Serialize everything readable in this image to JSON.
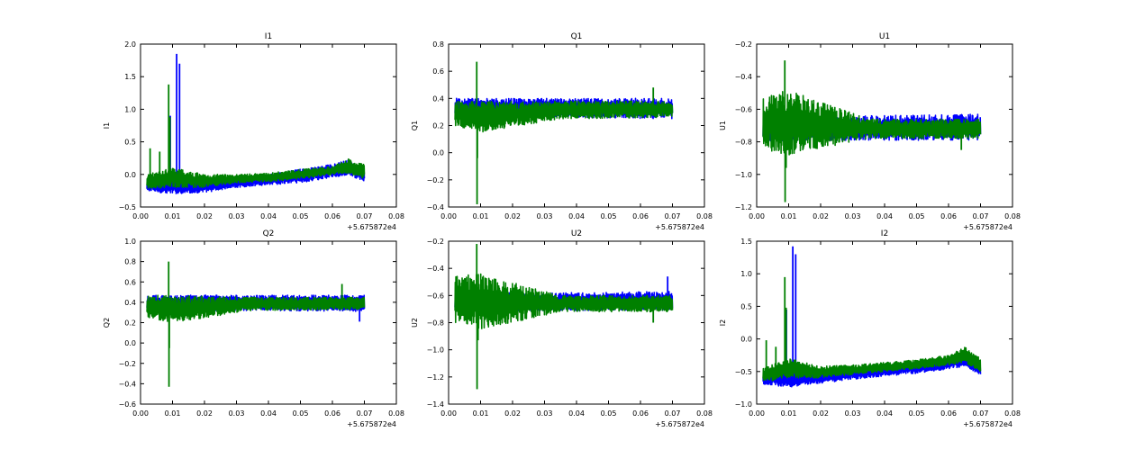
{
  "figure": {
    "offset_text": "+5.675872e4"
  },
  "colors": {
    "series_blue": "#0000ff",
    "series_green": "#008000"
  },
  "chart_data": [
    {
      "type": "line",
      "title": "I1",
      "xlabel": "",
      "ylabel": "I1",
      "xlim": [
        0.0,
        0.08
      ],
      "ylim": [
        -0.5,
        2.0
      ],
      "xticks": [
        "0.00",
        "0.01",
        "0.02",
        "0.03",
        "0.04",
        "0.05",
        "0.06",
        "0.07",
        "0.08"
      ],
      "yticks": [
        "−0.5",
        "0.0",
        "0.5",
        "1.0",
        "1.5",
        "2.0"
      ],
      "x_range": [
        0.002,
        0.07
      ],
      "series": [
        {
          "color": "#0000ff",
          "lower": [
            [
              0.002,
              -0.26
            ],
            [
              0.01,
              -0.3
            ],
            [
              0.02,
              -0.28
            ],
            [
              0.03,
              -0.2
            ],
            [
              0.04,
              -0.16
            ],
            [
              0.05,
              -0.13
            ],
            [
              0.06,
              -0.05
            ],
            [
              0.065,
              0.0
            ],
            [
              0.07,
              -0.12
            ]
          ],
          "upper": [
            [
              0.002,
              -0.08
            ],
            [
              0.01,
              -0.05
            ],
            [
              0.02,
              -0.1
            ],
            [
              0.03,
              -0.05
            ],
            [
              0.04,
              0.0
            ],
            [
              0.05,
              0.08
            ],
            [
              0.06,
              0.16
            ],
            [
              0.065,
              0.22
            ],
            [
              0.07,
              0.05
            ]
          ],
          "spikes": [
            [
              0.0113,
              1.85
            ],
            [
              0.0122,
              1.7
            ],
            [
              0.0093,
              0.9
            ]
          ]
        },
        {
          "color": "#008000",
          "lower": [
            [
              0.002,
              -0.22
            ],
            [
              0.01,
              -0.2
            ],
            [
              0.02,
              -0.2
            ],
            [
              0.03,
              -0.13
            ],
            [
              0.04,
              -0.11
            ],
            [
              0.05,
              -0.07
            ],
            [
              0.06,
              0.0
            ],
            [
              0.065,
              0.02
            ],
            [
              0.07,
              -0.07
            ]
          ],
          "upper": [
            [
              0.002,
              0.0
            ],
            [
              0.01,
              0.1
            ],
            [
              0.02,
              0.0
            ],
            [
              0.03,
              0.0
            ],
            [
              0.04,
              0.02
            ],
            [
              0.05,
              0.08
            ],
            [
              0.06,
              0.12
            ],
            [
              0.065,
              0.24
            ],
            [
              0.07,
              0.15
            ]
          ],
          "spikes": [
            [
              0.0088,
              1.38
            ],
            [
              0.0092,
              0.88
            ],
            [
              0.003,
              0.4
            ],
            [
              0.006,
              0.35
            ]
          ]
        }
      ]
    },
    {
      "type": "line",
      "title": "Q1",
      "xlabel": "",
      "ylabel": "Q1",
      "xlim": [
        0.0,
        0.08
      ],
      "ylim": [
        -0.4,
        0.8
      ],
      "xticks": [
        "0.00",
        "0.01",
        "0.02",
        "0.03",
        "0.04",
        "0.05",
        "0.06",
        "0.07",
        "0.08"
      ],
      "yticks": [
        "−0.4",
        "−0.2",
        "0.0",
        "0.2",
        "0.4",
        "0.6",
        "0.8"
      ],
      "x_range": [
        0.002,
        0.07
      ],
      "series": [
        {
          "color": "#0000ff",
          "lower": [
            [
              0.002,
              0.26
            ],
            [
              0.035,
              0.26
            ],
            [
              0.07,
              0.25
            ]
          ],
          "upper": [
            [
              0.002,
              0.4
            ],
            [
              0.035,
              0.4
            ],
            [
              0.07,
              0.4
            ]
          ],
          "spikes": []
        },
        {
          "color": "#008000",
          "lower": [
            [
              0.002,
              0.2
            ],
            [
              0.01,
              0.15
            ],
            [
              0.035,
              0.25
            ],
            [
              0.07,
              0.26
            ]
          ],
          "upper": [
            [
              0.002,
              0.38
            ],
            [
              0.035,
              0.38
            ],
            [
              0.07,
              0.38
            ]
          ],
          "spikes": [
            [
              0.0088,
              0.67
            ],
            [
              0.0089,
              -0.38
            ],
            [
              0.009,
              -0.04
            ],
            [
              0.064,
              0.48
            ]
          ]
        }
      ]
    },
    {
      "type": "line",
      "title": "U1",
      "xlabel": "",
      "ylabel": "U1",
      "xlim": [
        0.0,
        0.08
      ],
      "ylim": [
        -1.2,
        -0.2
      ],
      "xticks": [
        "0.00",
        "0.01",
        "0.02",
        "0.03",
        "0.04",
        "0.05",
        "0.06",
        "0.07",
        "0.08"
      ],
      "yticks": [
        "−1.2",
        "−1.0",
        "−0.8",
        "−0.6",
        "−0.4",
        "−0.2"
      ],
      "x_range": [
        0.002,
        0.07
      ],
      "series": [
        {
          "color": "#0000ff",
          "lower": [
            [
              0.002,
              -0.8
            ],
            [
              0.035,
              -0.79
            ],
            [
              0.07,
              -0.79
            ]
          ],
          "upper": [
            [
              0.002,
              -0.64
            ],
            [
              0.035,
              -0.64
            ],
            [
              0.07,
              -0.63
            ]
          ],
          "spikes": []
        },
        {
          "color": "#008000",
          "lower": [
            [
              0.002,
              -0.85
            ],
            [
              0.01,
              -0.88
            ],
            [
              0.035,
              -0.78
            ],
            [
              0.07,
              -0.78
            ]
          ],
          "upper": [
            [
              0.002,
              -0.52
            ],
            [
              0.01,
              -0.48
            ],
            [
              0.035,
              -0.66
            ],
            [
              0.07,
              -0.66
            ]
          ],
          "spikes": [
            [
              0.0088,
              -0.3
            ],
            [
              0.0089,
              -1.17
            ],
            [
              0.0092,
              -0.96
            ],
            [
              0.064,
              -0.85
            ]
          ]
        }
      ]
    },
    {
      "type": "line",
      "title": "Q2",
      "xlabel": "",
      "ylabel": "Q2",
      "xlim": [
        0.0,
        0.08
      ],
      "ylim": [
        -0.6,
        1.0
      ],
      "xticks": [
        "0.00",
        "0.01",
        "0.02",
        "0.03",
        "0.04",
        "0.05",
        "0.06",
        "0.07",
        "0.08"
      ],
      "yticks": [
        "−0.6",
        "−0.4",
        "−0.2",
        "0.0",
        "0.2",
        "0.4",
        "0.6",
        "0.8",
        "1.0"
      ],
      "x_range": [
        0.002,
        0.07
      ],
      "series": [
        {
          "color": "#0000ff",
          "lower": [
            [
              0.002,
              0.31
            ],
            [
              0.035,
              0.32
            ],
            [
              0.07,
              0.31
            ]
          ],
          "upper": [
            [
              0.002,
              0.47
            ],
            [
              0.035,
              0.47
            ],
            [
              0.07,
              0.47
            ]
          ],
          "spikes": [
            [
              0.0685,
              0.21
            ]
          ]
        },
        {
          "color": "#008000",
          "lower": [
            [
              0.002,
              0.25
            ],
            [
              0.01,
              0.2
            ],
            [
              0.035,
              0.32
            ],
            [
              0.07,
              0.33
            ]
          ],
          "upper": [
            [
              0.002,
              0.47
            ],
            [
              0.035,
              0.45
            ],
            [
              0.07,
              0.45
            ]
          ],
          "spikes": [
            [
              0.0088,
              0.8
            ],
            [
              0.0089,
              -0.43
            ],
            [
              0.009,
              -0.05
            ],
            [
              0.063,
              0.58
            ]
          ]
        }
      ]
    },
    {
      "type": "line",
      "title": "U2",
      "xlabel": "",
      "ylabel": "U2",
      "xlim": [
        0.0,
        0.08
      ],
      "ylim": [
        -1.4,
        -0.2
      ],
      "xticks": [
        "0.00",
        "0.01",
        "0.02",
        "0.03",
        "0.04",
        "0.05",
        "0.06",
        "0.07",
        "0.08"
      ],
      "yticks": [
        "−1.4",
        "−1.2",
        "−1.0",
        "−0.8",
        "−0.6",
        "−0.4",
        "−0.2"
      ],
      "x_range": [
        0.002,
        0.07
      ],
      "series": [
        {
          "color": "#0000ff",
          "lower": [
            [
              0.002,
              -0.72
            ],
            [
              0.035,
              -0.71
            ],
            [
              0.07,
              -0.71
            ]
          ],
          "upper": [
            [
              0.002,
              -0.58
            ],
            [
              0.035,
              -0.58
            ],
            [
              0.07,
              -0.57
            ]
          ],
          "spikes": [
            [
              0.0685,
              -0.46
            ]
          ]
        },
        {
          "color": "#008000",
          "lower": [
            [
              0.002,
              -0.8
            ],
            [
              0.01,
              -0.85
            ],
            [
              0.035,
              -0.72
            ],
            [
              0.07,
              -0.72
            ]
          ],
          "upper": [
            [
              0.002,
              -0.45
            ],
            [
              0.01,
              -0.44
            ],
            [
              0.035,
              -0.6
            ],
            [
              0.07,
              -0.6
            ]
          ],
          "spikes": [
            [
              0.0088,
              -0.22
            ],
            [
              0.0089,
              -1.29
            ],
            [
              0.0092,
              -0.93
            ],
            [
              0.064,
              -0.8
            ]
          ]
        }
      ]
    },
    {
      "type": "line",
      "title": "I2",
      "xlabel": "",
      "ylabel": "I2",
      "xlim": [
        0.0,
        0.08
      ],
      "ylim": [
        -1.0,
        1.5
      ],
      "xticks": [
        "0.00",
        "0.01",
        "0.02",
        "0.03",
        "0.04",
        "0.05",
        "0.06",
        "0.07",
        "0.08"
      ],
      "yticks": [
        "−1.0",
        "−0.5",
        "0.0",
        "0.5",
        "1.0",
        "1.5"
      ],
      "x_range": [
        0.002,
        0.07
      ],
      "series": [
        {
          "color": "#0000ff",
          "lower": [
            [
              0.002,
              -0.7
            ],
            [
              0.01,
              -0.74
            ],
            [
              0.02,
              -0.68
            ],
            [
              0.03,
              -0.62
            ],
            [
              0.04,
              -0.57
            ],
            [
              0.05,
              -0.53
            ],
            [
              0.06,
              -0.46
            ],
            [
              0.065,
              -0.42
            ],
            [
              0.07,
              -0.55
            ]
          ],
          "upper": [
            [
              0.002,
              -0.5
            ],
            [
              0.01,
              -0.48
            ],
            [
              0.02,
              -0.5
            ],
            [
              0.03,
              -0.45
            ],
            [
              0.04,
              -0.42
            ],
            [
              0.05,
              -0.36
            ],
            [
              0.06,
              -0.3
            ],
            [
              0.065,
              -0.25
            ],
            [
              0.07,
              -0.42
            ]
          ],
          "spikes": [
            [
              0.0113,
              1.42
            ],
            [
              0.0122,
              1.3
            ],
            [
              0.0093,
              0.45
            ]
          ]
        },
        {
          "color": "#008000",
          "lower": [
            [
              0.002,
              -0.66
            ],
            [
              0.01,
              -0.6
            ],
            [
              0.02,
              -0.6
            ],
            [
              0.03,
              -0.55
            ],
            [
              0.04,
              -0.5
            ],
            [
              0.05,
              -0.46
            ],
            [
              0.06,
              -0.4
            ],
            [
              0.065,
              -0.36
            ],
            [
              0.07,
              -0.5
            ]
          ],
          "upper": [
            [
              0.002,
              -0.45
            ],
            [
              0.01,
              -0.3
            ],
            [
              0.02,
              -0.42
            ],
            [
              0.03,
              -0.4
            ],
            [
              0.04,
              -0.36
            ],
            [
              0.05,
              -0.32
            ],
            [
              0.06,
              -0.25
            ],
            [
              0.065,
              -0.12
            ],
            [
              0.07,
              -0.3
            ]
          ],
          "spikes": [
            [
              0.0088,
              0.95
            ],
            [
              0.0092,
              0.48
            ],
            [
              0.003,
              -0.02
            ],
            [
              0.006,
              -0.12
            ]
          ]
        }
      ]
    }
  ]
}
